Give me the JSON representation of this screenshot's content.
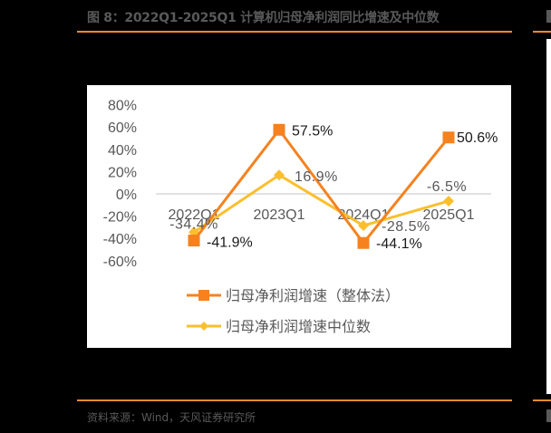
{
  "header": {
    "figure_title": "图 8：2022Q1-2025Q1 计算机归母净利润同比增速及中位数"
  },
  "footer": {
    "source": "资料来源：Wind，天风证券研究所"
  },
  "colors": {
    "accent_rule": "#f08a2c",
    "series_overall": "#f5821f",
    "series_median": "#fbbf2e",
    "axis_text": "#595959",
    "zero_line": "#d9d9d9"
  },
  "chart_data": {
    "type": "line",
    "title": "2022Q1-2025Q1 计算机归母净利润同比增速及中位数",
    "xlabel": "",
    "ylabel": "",
    "categories": [
      "2022Q1",
      "2023Q1",
      "2024Q1",
      "2025Q1"
    ],
    "y_ticks": [
      "80%",
      "60%",
      "40%",
      "20%",
      "0%",
      "-20%",
      "-40%",
      "-60%"
    ],
    "ylim": [
      -60,
      80
    ],
    "grid": false,
    "legend_position": "bottom",
    "series": [
      {
        "name": "归母净利润增速（整体法）",
        "marker": "square",
        "color": "#f5821f",
        "values": [
          -41.9,
          57.5,
          -44.1,
          50.6
        ],
        "labels": [
          "-41.9%",
          "57.5%",
          "-44.1%",
          "50.6%"
        ]
      },
      {
        "name": "归母净利润增速中位数",
        "marker": "diamond",
        "color": "#fbbf2e",
        "values": [
          -34.4,
          16.9,
          -28.5,
          -6.5
        ],
        "labels": [
          "-34.4%",
          "16.9%",
          "-28.5%",
          "-6.5%"
        ]
      }
    ]
  }
}
